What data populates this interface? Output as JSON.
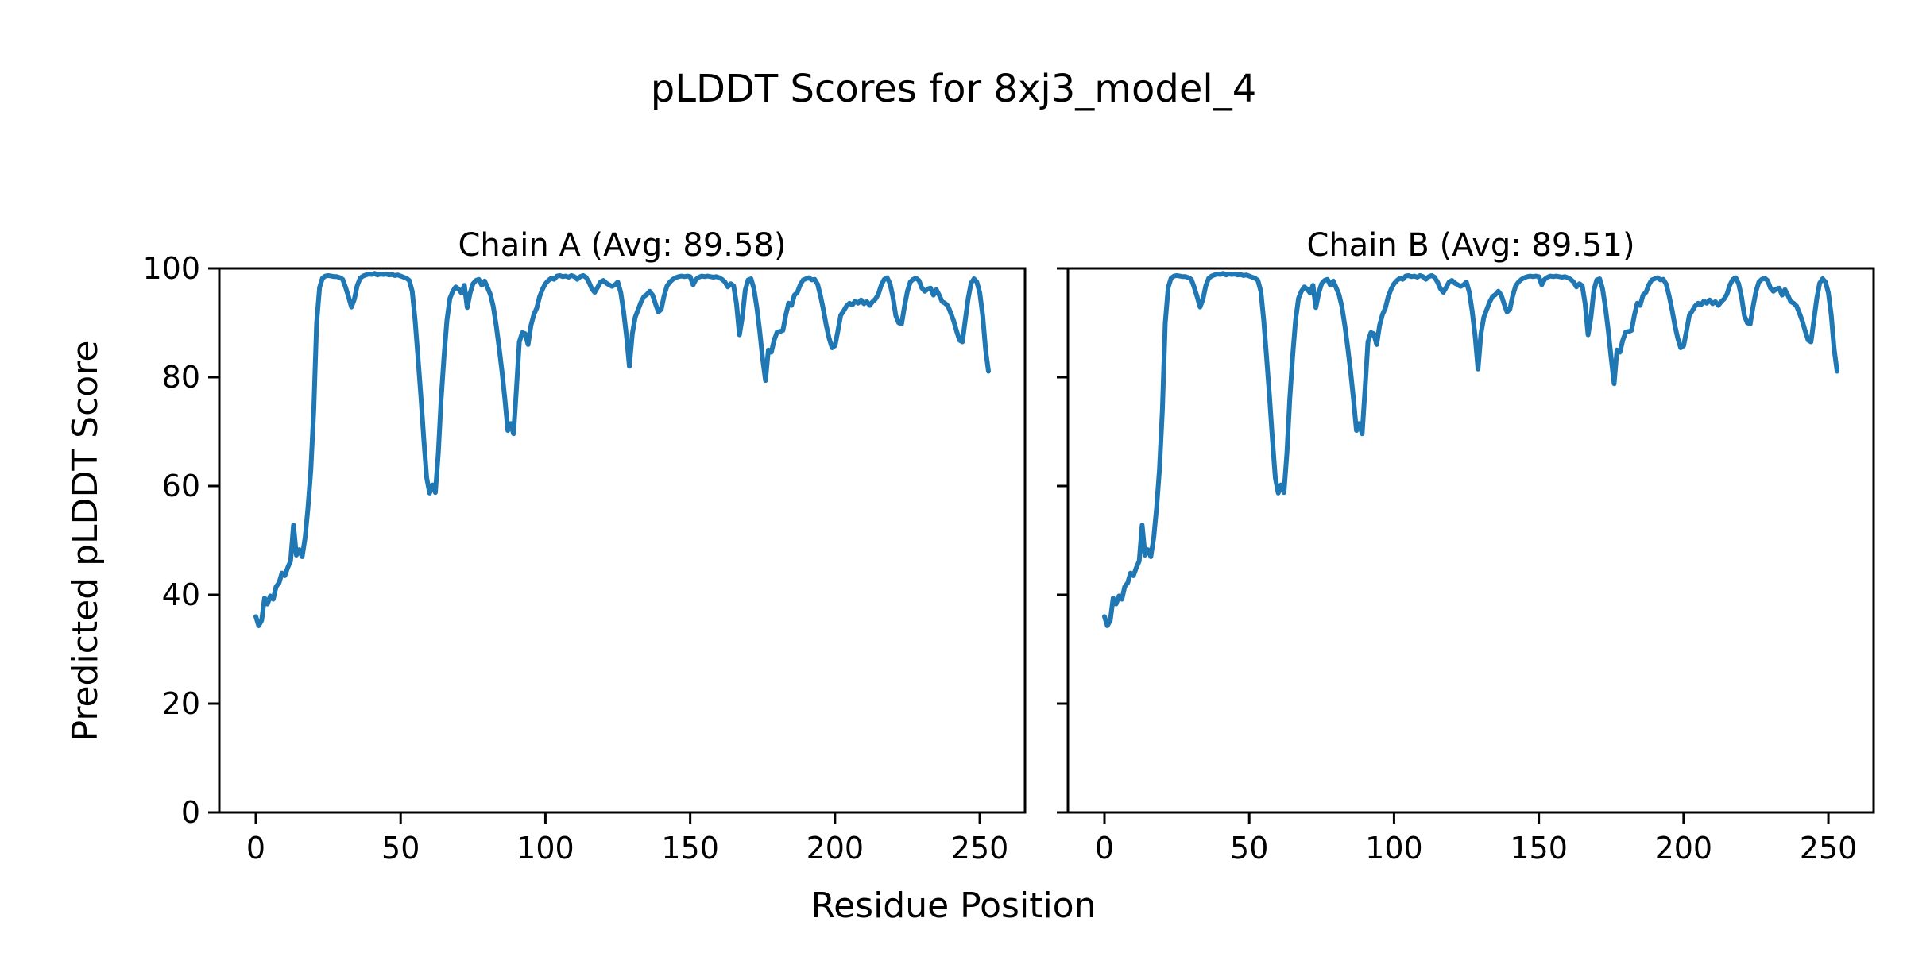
{
  "figure": {
    "title": "pLDDT Scores for 8xj3_model_4",
    "xlabel": "Residue Position",
    "ylabel": "Predicted pLDDT Score",
    "background_color": "#ffffff",
    "line_color": "#1f77b4",
    "spine_color": "#000000"
  },
  "chart_data": [
    {
      "type": "line",
      "title": "Chain A (Avg: 89.58)",
      "chain": "A",
      "avg_label": 89.58,
      "xlabel": "Residue Position",
      "ylabel": "Predicted pLDDT Score",
      "x_start": 0,
      "x_step": 1,
      "xticks": [
        0,
        50,
        100,
        150,
        200,
        250
      ],
      "yticks": [
        0,
        20,
        40,
        60,
        80,
        100
      ],
      "ylim": [
        0,
        100
      ],
      "grid": false,
      "legend": "none",
      "line_color": "#1f77b4",
      "values": [
        36.0,
        34.3,
        35.3,
        39.4,
        38.3,
        39.8,
        39.2,
        41.5,
        42.2,
        44.0,
        43.5,
        45.0,
        46.2,
        52.8,
        47.3,
        48.3,
        47.0,
        50.5,
        56.0,
        63.0,
        74.0,
        90.0,
        96.5,
        98.2,
        98.6,
        98.7,
        98.6,
        98.5,
        98.5,
        98.3,
        98.0,
        96.5,
        94.8,
        92.9,
        94.3,
        96.8,
        98.2,
        98.6,
        98.8,
        99.0,
        98.9,
        99.1,
        98.8,
        99.0,
        98.9,
        99.0,
        98.8,
        98.9,
        98.7,
        98.8,
        98.6,
        98.4,
        98.2,
        97.8,
        95.8,
        90.5,
        83.5,
        76.5,
        68.5,
        61.5,
        58.7,
        60.2,
        58.8,
        66.0,
        76.0,
        84.0,
        90.5,
        94.5,
        95.8,
        96.6,
        96.2,
        95.5,
        96.9,
        92.8,
        95.5,
        97.2,
        97.8,
        98.0,
        96.9,
        97.7,
        96.5,
        95.2,
        93.0,
        89.5,
        85.5,
        81.0,
        76.0,
        70.2,
        71.5,
        69.6,
        78.0,
        86.5,
        88.2,
        88.0,
        86.0,
        89.5,
        91.5,
        92.7,
        94.8,
        96.2,
        97.2,
        97.8,
        98.2,
        98.0,
        98.6,
        98.7,
        98.5,
        98.6,
        98.4,
        98.7,
        98.5,
        98.0,
        98.5,
        98.7,
        98.4,
        97.5,
        96.3,
        95.6,
        96.5,
        97.5,
        97.8,
        97.3,
        97.0,
        96.7,
        97.0,
        97.5,
        95.6,
        92.1,
        87.5,
        82.0,
        88.0,
        91.0,
        92.4,
        93.8,
        94.8,
        95.2,
        95.8,
        95.1,
        93.5,
        92.0,
        92.5,
        95.0,
        96.8,
        97.5,
        98.0,
        98.3,
        98.5,
        98.6,
        98.5,
        98.6,
        98.5,
        97.0,
        98.0,
        98.4,
        98.6,
        98.5,
        98.6,
        98.5,
        98.4,
        98.5,
        98.3,
        98.0,
        97.5,
        96.6,
        97.2,
        96.8,
        93.5,
        87.8,
        91.0,
        96.0,
        97.9,
        98.1,
        96.3,
        92.8,
        88.5,
        83.5,
        79.4,
        85.0,
        84.6,
        86.8,
        88.3,
        88.4,
        88.6,
        91.4,
        93.6,
        93.2,
        95.1,
        95.6,
        97.0,
        97.9,
        98.1,
        98.3,
        97.9,
        98.0,
        97.1,
        95.0,
        92.4,
        89.5,
        87.1,
        85.4,
        85.8,
        88.5,
        91.4,
        92.2,
        93.1,
        93.6,
        93.3,
        94.0,
        93.6,
        94.2,
        93.5,
        93.9,
        93.2,
        93.9,
        94.4,
        95.3,
        97.0,
        98.0,
        98.3,
        97.2,
        94.8,
        91.3,
        90.0,
        89.8,
        93.0,
        95.8,
        97.5,
        98.0,
        98.2,
        97.8,
        96.4,
        95.8,
        96.2,
        96.4,
        95.1,
        96.1,
        95.1,
        93.9,
        93.6,
        93.1,
        91.8,
        90.3,
        88.5,
        86.8,
        86.5,
        90.5,
        94.5,
        97.3,
        98.1,
        97.5,
        95.5,
        91.4,
        85.1,
        81.1
      ]
    },
    {
      "type": "line",
      "title": "Chain B (Avg: 89.51)",
      "chain": "B",
      "avg_label": 89.51,
      "xlabel": "Residue Position",
      "ylabel": "Predicted pLDDT Score",
      "x_start": 0,
      "x_step": 1,
      "xticks": [
        0,
        50,
        100,
        150,
        200,
        250
      ],
      "yticks": [
        0,
        20,
        40,
        60,
        80,
        100
      ],
      "ylim": [
        0,
        100
      ],
      "grid": false,
      "legend": "none",
      "line_color": "#1f77b4",
      "values": [
        36.0,
        34.3,
        35.3,
        39.4,
        38.3,
        39.8,
        39.2,
        41.5,
        42.2,
        44.0,
        43.5,
        45.0,
        46.2,
        52.8,
        47.3,
        48.3,
        47.0,
        50.5,
        56.0,
        63.0,
        74.0,
        90.0,
        96.5,
        98.2,
        98.6,
        98.7,
        98.6,
        98.5,
        98.5,
        98.3,
        98.0,
        96.5,
        94.8,
        92.9,
        94.3,
        96.8,
        98.2,
        98.6,
        98.8,
        99.0,
        98.9,
        99.1,
        98.8,
        99.0,
        98.9,
        99.0,
        98.8,
        98.9,
        98.7,
        98.8,
        98.6,
        98.4,
        98.2,
        97.8,
        95.8,
        90.5,
        83.5,
        76.5,
        68.5,
        61.5,
        58.7,
        60.2,
        58.8,
        66.0,
        76.0,
        84.0,
        90.5,
        94.5,
        95.8,
        96.6,
        96.2,
        95.5,
        96.9,
        92.8,
        95.5,
        97.2,
        97.8,
        98.0,
        96.9,
        97.7,
        96.5,
        95.2,
        93.0,
        89.5,
        85.5,
        81.0,
        76.0,
        70.2,
        71.5,
        69.6,
        78.0,
        86.5,
        88.2,
        88.0,
        86.0,
        89.5,
        91.5,
        92.7,
        94.8,
        96.2,
        97.2,
        97.8,
        98.2,
        98.0,
        98.6,
        98.7,
        98.5,
        98.6,
        98.4,
        98.7,
        98.5,
        98.0,
        98.5,
        98.7,
        98.4,
        97.5,
        96.3,
        95.6,
        96.5,
        97.5,
        97.8,
        97.3,
        97.0,
        96.7,
        97.0,
        97.5,
        95.6,
        92.1,
        87.5,
        81.5,
        88.0,
        91.0,
        92.4,
        93.8,
        94.8,
        95.2,
        95.8,
        95.1,
        93.5,
        92.0,
        92.5,
        95.0,
        96.8,
        97.5,
        98.0,
        98.3,
        98.5,
        98.6,
        98.5,
        98.6,
        98.5,
        97.0,
        98.0,
        98.4,
        98.6,
        98.5,
        98.6,
        98.5,
        98.4,
        98.5,
        98.3,
        98.0,
        97.5,
        96.6,
        97.2,
        96.8,
        93.5,
        87.8,
        91.0,
        96.0,
        97.9,
        98.1,
        96.3,
        92.8,
        88.5,
        83.5,
        78.8,
        85.0,
        84.6,
        86.8,
        88.3,
        88.4,
        88.6,
        91.4,
        93.6,
        93.2,
        95.1,
        95.6,
        97.0,
        97.9,
        98.1,
        98.3,
        97.9,
        98.0,
        97.1,
        95.0,
        92.4,
        89.5,
        87.1,
        85.4,
        85.8,
        88.5,
        91.4,
        92.2,
        93.1,
        93.6,
        93.3,
        94.0,
        93.6,
        94.2,
        93.5,
        93.9,
        93.2,
        93.9,
        94.4,
        95.3,
        97.0,
        98.0,
        98.3,
        97.2,
        94.8,
        91.3,
        90.0,
        89.8,
        93.0,
        95.8,
        97.5,
        98.0,
        98.2,
        97.8,
        96.4,
        95.8,
        96.2,
        96.4,
        95.1,
        96.1,
        95.1,
        93.9,
        93.6,
        93.1,
        91.8,
        90.3,
        88.5,
        86.8,
        86.5,
        90.5,
        94.5,
        97.3,
        98.1,
        97.5,
        95.5,
        91.4,
        85.1,
        81.1
      ]
    }
  ]
}
